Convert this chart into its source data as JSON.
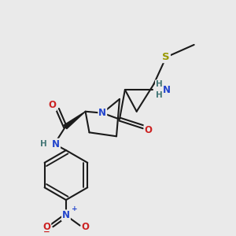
{
  "bg_color": "#eaeaea",
  "bond_color": "#1a1a1a",
  "bond_width": 1.5,
  "atom_colors": {
    "N": "#2244cc",
    "O": "#cc2222",
    "S": "#999900",
    "H": "#447777",
    "C": "#1a1a1a"
  },
  "font_size": 8.5
}
